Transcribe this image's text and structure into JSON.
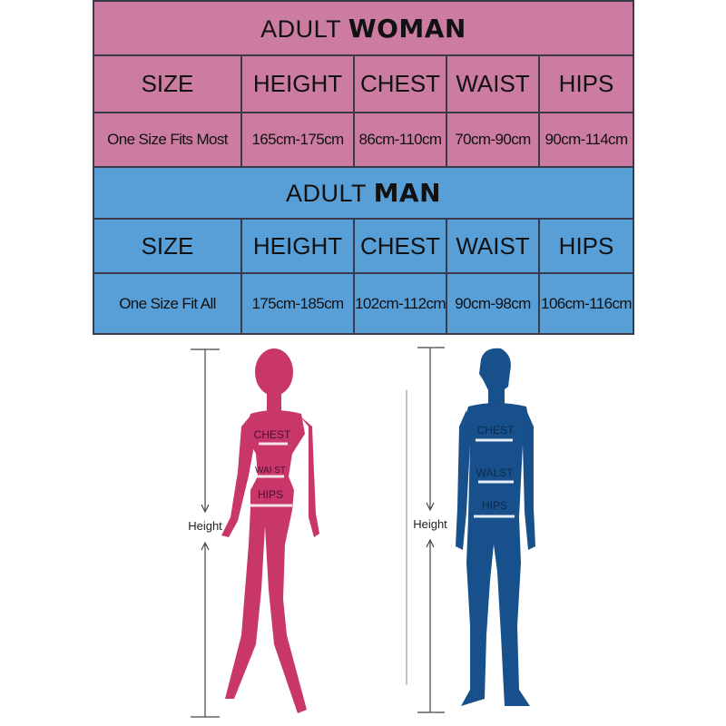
{
  "woman": {
    "title_prefix": "ADULT",
    "title_bold": "WOMAN",
    "columns": [
      "SIZE",
      "HEIGHT",
      "CHEST",
      "WAIST",
      "HIPS"
    ],
    "row": [
      "One Size Fits Most",
      "165cm-175cm",
      "86cm-110cm",
      "70cm-90cm",
      "90cm-114cm"
    ],
    "figure_labels": {
      "chest": "CHEST",
      "waist": "WAI ST",
      "hips": "HIPS",
      "height": "Height"
    }
  },
  "man": {
    "title_prefix": "ADULT",
    "title_bold": "MAN",
    "columns": [
      "SIZE",
      "HEIGHT",
      "CHEST",
      "WAIST",
      "HIPS"
    ],
    "row": [
      "One Size Fit All",
      "175cm-185cm",
      "102cm-112cm",
      "90cm-98cm",
      "106cm-116cm"
    ],
    "figure_labels": {
      "chest": "CHEST",
      "waist": "WALST",
      "hips": "HIPS",
      "height": "Height"
    }
  },
  "colors": {
    "woman_table": "#cc7ca0",
    "man_table": "#589fd8",
    "woman_figure": "#c8366a",
    "man_figure": "#17508a"
  }
}
